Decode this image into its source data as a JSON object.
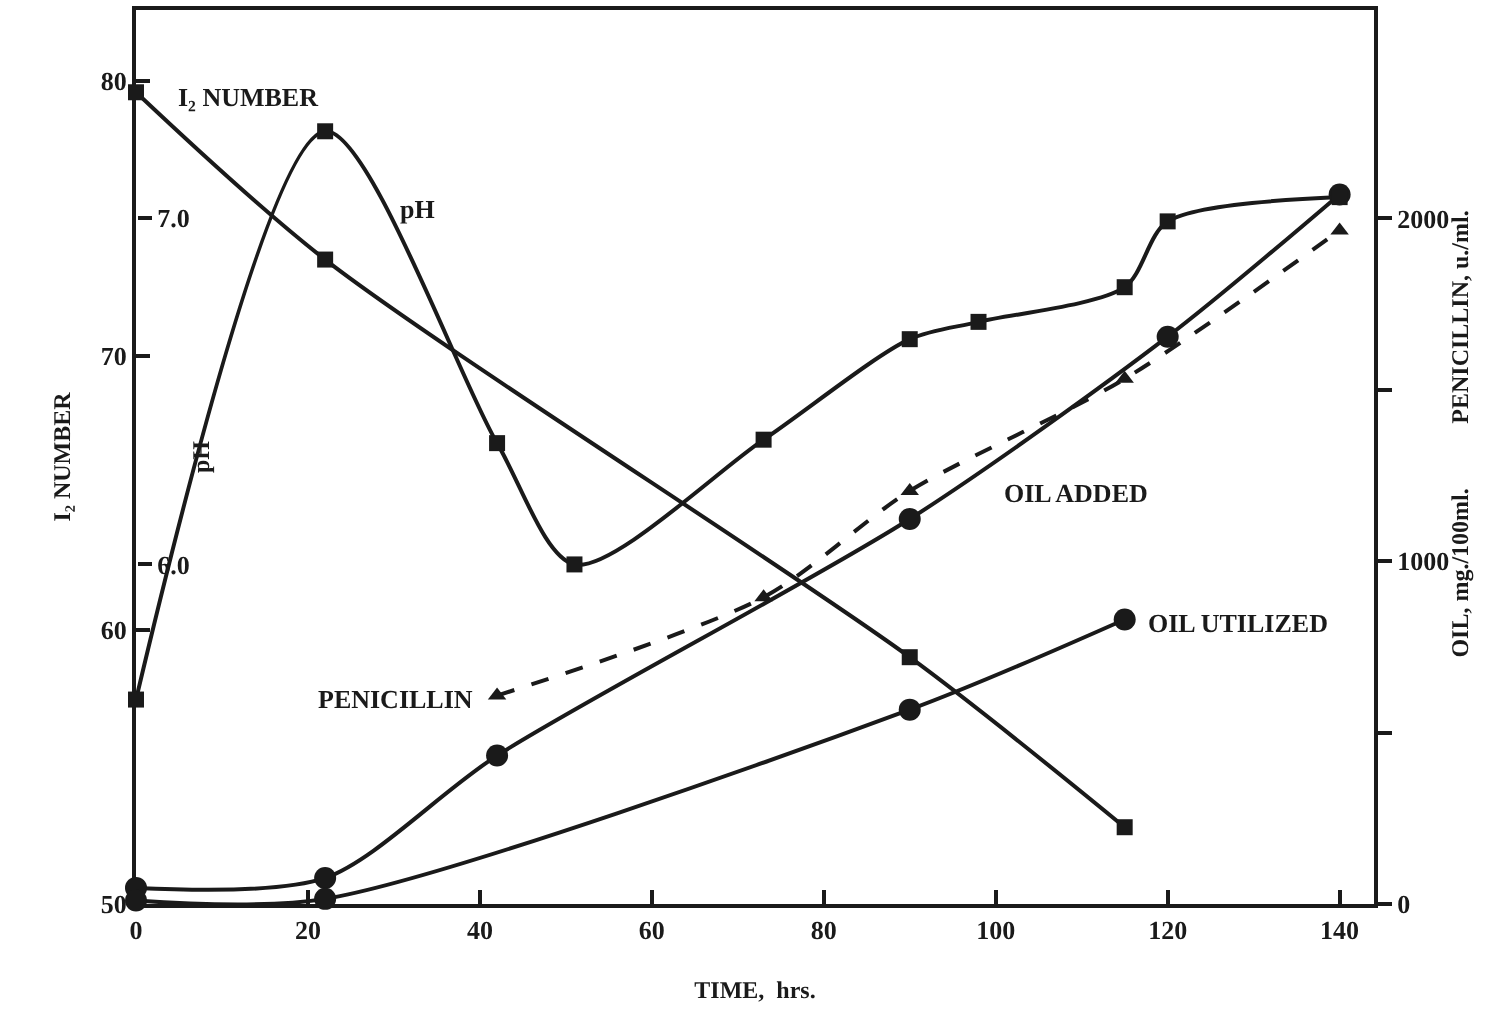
{
  "chart_data": {
    "type": "line",
    "xlabel": "TIME,  hrs.",
    "ylabel": "I₂ NUMBER",
    "y2label": "PENICILLIN, u./ml.",
    "y3label": "pH",
    "annotations": [
      "OIL, mg./100ml."
    ],
    "xlim": [
      0,
      144
    ],
    "xticks": [
      0,
      20,
      40,
      60,
      80,
      100,
      120,
      140
    ],
    "ylim": [
      50,
      82.6
    ],
    "yticks": [
      50,
      60,
      70,
      80
    ],
    "y2lim": [
      0,
      2608
    ],
    "y2ticks": [
      0,
      {
        "value": 500,
        "label": null
      },
      1000,
      {
        "value": 1500,
        "label": null
      },
      2000
    ],
    "y3lim": [
      5.02,
      7.6
    ],
    "y3ticks": [
      {
        "value": 6,
        "label": "6.0"
      },
      {
        "value": 7,
        "label": "7.0"
      }
    ],
    "grid": false,
    "legend": false,
    "series": [
      {
        "name": "I₂ NUMBER",
        "color": "#1a1a1a",
        "marker": "square",
        "line_style": "solid",
        "x": [
          0,
          22,
          90,
          115
        ],
        "values": [
          79.6,
          73.5,
          59.0,
          52.8
        ]
      },
      {
        "name": "pH",
        "color": "#1a1a1a",
        "marker": "square",
        "line_style": "solid",
        "axis": "y3",
        "x": [
          0,
          22,
          42,
          51,
          73,
          90,
          98,
          115,
          120,
          140
        ],
        "values": [
          5.61,
          7.25,
          6.35,
          6.0,
          6.36,
          6.65,
          6.7,
          6.8,
          6.99,
          7.06
        ]
      },
      {
        "name": "PENICILLIN",
        "color": "#1a1a1a",
        "marker": "triangle",
        "line_style": "dashed",
        "axis": "y2",
        "x": [
          42,
          73,
          90,
          115,
          140
        ],
        "values": [
          608,
          895,
          1205,
          1532,
          1965
        ]
      },
      {
        "name": "OIL ADDED",
        "color": "#1a1a1a",
        "marker": "circle",
        "line_style": "solid",
        "axis": "y2",
        "x": [
          0,
          22,
          42,
          90,
          120,
          140
        ],
        "values": [
          47,
          76,
          433,
          1123,
          1655,
          2070
        ]
      },
      {
        "name": "OIL UTILIZED",
        "color": "#1a1a1a",
        "marker": "circle",
        "line_style": "solid",
        "axis": "y2",
        "x": [
          0,
          22,
          90,
          115
        ],
        "values": [
          10,
          15,
          567,
          830
        ]
      }
    ]
  }
}
